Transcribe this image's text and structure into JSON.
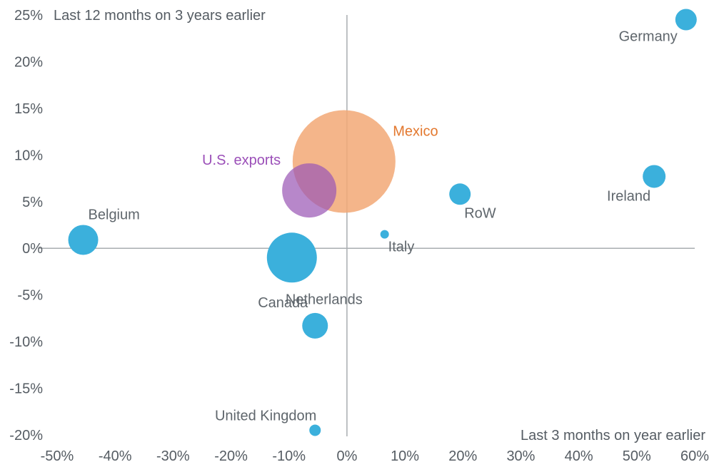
{
  "chart_data": {
    "type": "scatter",
    "title": "",
    "xlabel": "Last 3 months on year earlier",
    "ylabel": "Last 12 months on 3 years earlier",
    "xlim": [
      -50,
      60
    ],
    "ylim": [
      -20,
      25
    ],
    "x_ticks": [
      -50,
      -40,
      -30,
      -20,
      -10,
      0,
      10,
      20,
      30,
      40,
      50,
      60
    ],
    "y_ticks": [
      -20,
      -15,
      -10,
      -5,
      0,
      5,
      10,
      15,
      20,
      25
    ],
    "tick_suffix": "%",
    "grid": false,
    "legend": "none",
    "colors": {
      "default": "#3bb0dc",
      "Mexico": "#f2a875",
      "U.S. exports": "#9b59b6",
      "axis": "#a9adb0",
      "tick_text": "#555c63"
    },
    "points": [
      {
        "label": "Mexico",
        "x": -0.5,
        "y": 9.3,
        "size": 72,
        "label_pos": "right-up"
      },
      {
        "label": "U.S. exports",
        "x": -6.5,
        "y": 6.2,
        "size": 38,
        "label_pos": "left-up"
      },
      {
        "label": "Netherlands",
        "x": -9.5,
        "y": -1.0,
        "size": 35,
        "label_pos": "below"
      },
      {
        "label": "Belgium",
        "x": -45.5,
        "y": 0.9,
        "size": 21,
        "label_pos": "above-right"
      },
      {
        "label": "Canada",
        "x": -5.5,
        "y": -8.3,
        "size": 18,
        "label_pos": "above-left"
      },
      {
        "label": "Ireland",
        "x": 53,
        "y": 7.7,
        "size": 16,
        "label_pos": "below-left"
      },
      {
        "label": "RoW",
        "x": 19.5,
        "y": 5.8,
        "size": 15,
        "label_pos": "below-right"
      },
      {
        "label": "Germany",
        "x": 58.5,
        "y": 24.5,
        "size": 15,
        "label_pos": "below-left"
      },
      {
        "label": "Italy",
        "x": 6.5,
        "y": 1.5,
        "size": 6,
        "label_pos": "below-right"
      },
      {
        "label": "United Kingdom",
        "x": -5.5,
        "y": -19.5,
        "size": 8,
        "label_pos": "above-left"
      }
    ]
  }
}
